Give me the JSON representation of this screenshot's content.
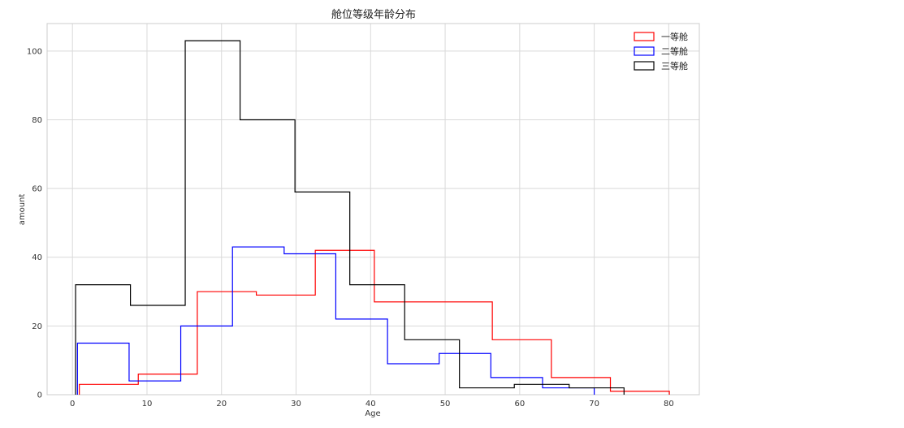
{
  "chart_data": {
    "type": "histogram",
    "title": "舱位等级年龄分布",
    "xlabel": "Age",
    "ylabel": "amount",
    "xlim": [
      -3.4,
      84.1
    ],
    "ylim": [
      0,
      108
    ],
    "xticks": [
      0,
      10,
      20,
      30,
      40,
      50,
      60,
      70,
      80
    ],
    "yticks": [
      0,
      20,
      40,
      60,
      80,
      100
    ],
    "grid": true,
    "legend_position": "top-right",
    "series": [
      {
        "name": "一等舱",
        "color": "#ff0000",
        "edges": [
          0.92,
          8.83,
          16.75,
          24.67,
          32.58,
          40.5,
          48.42,
          56.33,
          64.25,
          72.17,
          80.08
        ],
        "counts": [
          3,
          6,
          30,
          29,
          42,
          27,
          27,
          16,
          5,
          1
        ]
      },
      {
        "name": "二等舱",
        "color": "#0000ff",
        "edges": [
          0.67,
          7.6,
          14.53,
          21.47,
          28.4,
          35.33,
          42.27,
          49.2,
          56.13,
          63.07,
          70.0
        ],
        "counts": [
          15,
          4,
          20,
          43,
          41,
          22,
          9,
          12,
          5,
          2
        ]
      },
      {
        "name": "三等舱",
        "color": "#000000",
        "edges": [
          0.42,
          7.78,
          15.13,
          22.49,
          29.85,
          37.21,
          44.57,
          51.92,
          59.28,
          66.64,
          74.0
        ],
        "counts": [
          32,
          26,
          103,
          80,
          59,
          32,
          16,
          2,
          3,
          2
        ]
      }
    ]
  }
}
